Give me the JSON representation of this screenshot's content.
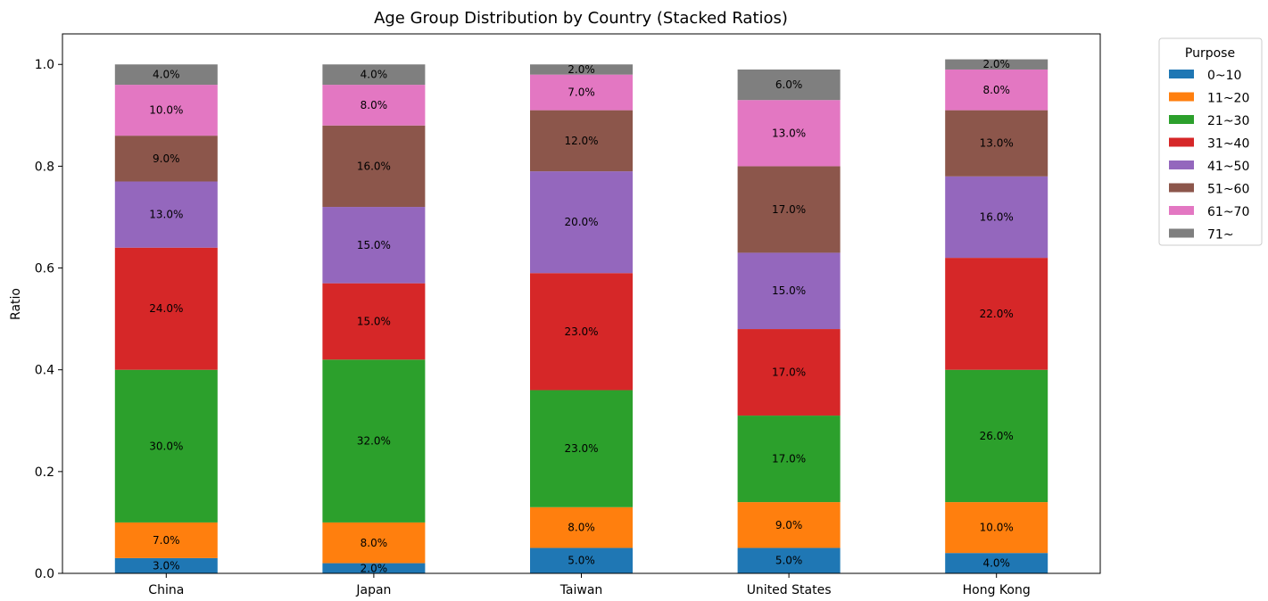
{
  "chart_data": {
    "type": "bar",
    "stacked": true,
    "title": "Age Group Distribution by Country (Stacked Ratios)",
    "xlabel": "",
    "ylabel": "Ratio",
    "ylim": [
      0,
      1.06
    ],
    "yticks": [
      "0.0",
      "0.2",
      "0.4",
      "0.6",
      "0.8",
      "1.0"
    ],
    "categories": [
      "China",
      "Japan",
      "Taiwan",
      "United States",
      "Hong Kong"
    ],
    "legend": {
      "title": "Purpose",
      "placement": "outside-top-right"
    },
    "series": [
      {
        "name": "0~10",
        "color": "#1f77b4",
        "values": [
          0.03,
          0.02,
          0.05,
          0.05,
          0.04
        ],
        "labels": [
          "3.0%",
          "2.0%",
          "5.0%",
          "5.0%",
          "4.0%"
        ]
      },
      {
        "name": "11~20",
        "color": "#ff7f0e",
        "values": [
          0.07,
          0.08,
          0.08,
          0.09,
          0.1
        ],
        "labels": [
          "7.0%",
          "8.0%",
          "8.0%",
          "9.0%",
          "10.0%"
        ]
      },
      {
        "name": "21~30",
        "color": "#2ca02c",
        "values": [
          0.3,
          0.32,
          0.23,
          0.17,
          0.26
        ],
        "labels": [
          "30.0%",
          "32.0%",
          "23.0%",
          "17.0%",
          "26.0%"
        ]
      },
      {
        "name": "31~40",
        "color": "#d62728",
        "values": [
          0.24,
          0.15,
          0.23,
          0.17,
          0.22
        ],
        "labels": [
          "24.0%",
          "15.0%",
          "23.0%",
          "17.0%",
          "22.0%"
        ]
      },
      {
        "name": "41~50",
        "color": "#9467bd",
        "values": [
          0.13,
          0.15,
          0.2,
          0.15,
          0.16
        ],
        "labels": [
          "13.0%",
          "15.0%",
          "20.0%",
          "15.0%",
          "16.0%"
        ]
      },
      {
        "name": "51~60",
        "color": "#8c564b",
        "values": [
          0.09,
          0.16,
          0.12,
          0.17,
          0.13
        ],
        "labels": [
          "9.0%",
          "16.0%",
          "12.0%",
          "17.0%",
          "13.0%"
        ]
      },
      {
        "name": "61~70",
        "color": "#e377c2",
        "values": [
          0.1,
          0.08,
          0.07,
          0.13,
          0.08
        ],
        "labels": [
          "10.0%",
          "8.0%",
          "7.0%",
          "13.0%",
          "8.0%"
        ]
      },
      {
        "name": "71~",
        "color": "#7f7f7f",
        "values": [
          0.04,
          0.04,
          0.02,
          0.06,
          0.02
        ],
        "labels": [
          "4.0%",
          "4.0%",
          "2.0%",
          "6.0%",
          "2.0%"
        ]
      }
    ]
  }
}
